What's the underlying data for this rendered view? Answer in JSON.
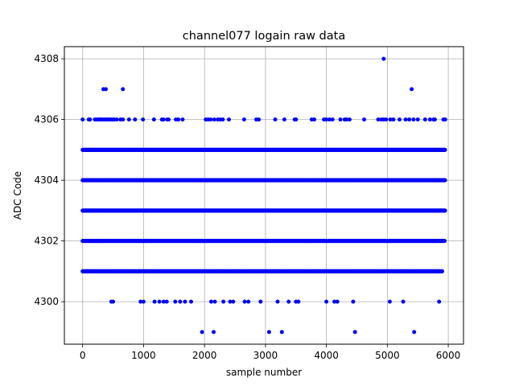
{
  "chart_data": {
    "type": "scatter",
    "title": "channel077 logain raw data",
    "xlabel": "sample number",
    "ylabel": "ADC Code",
    "xlim": [
      -300,
      6250
    ],
    "ylim": [
      4298.6,
      4308.4
    ],
    "xticks": [
      0,
      1000,
      2000,
      3000,
      4000,
      5000,
      6000
    ],
    "yticks": [
      4300,
      4302,
      4304,
      4306,
      4308
    ],
    "grid": true,
    "marker_color": "#0000ff",
    "sample_count": 6000,
    "dense_levels": [
      {
        "value": 4301,
        "x_start": 0,
        "x_end": 5900
      },
      {
        "value": 4302,
        "x_start": 0,
        "x_end": 5940
      },
      {
        "value": 4303,
        "x_start": 0,
        "x_end": 5950
      },
      {
        "value": 4304,
        "x_start": 0,
        "x_end": 5950
      },
      {
        "value": 4305,
        "x_start": 0,
        "x_end": 5950
      }
    ],
    "sparse_points": [
      {
        "value": 4306,
        "x": [
          0,
          100,
          120,
          200,
          230,
          260,
          280,
          300,
          320,
          350,
          380,
          400,
          420,
          450,
          480,
          500,
          520,
          560,
          620,
          660,
          760,
          860,
          990,
          1170,
          1300,
          1330,
          1390,
          1410,
          1530,
          1570,
          1640,
          2020,
          2060,
          2100,
          2160,
          2220,
          2260,
          2300,
          2400,
          2650,
          2850,
          2890,
          3160,
          3310,
          3480,
          3500,
          3760,
          3800,
          3960,
          4000,
          4050,
          4100,
          4230,
          4300,
          4330,
          4380,
          4620,
          4850,
          4900,
          4940,
          4980,
          5050,
          5100,
          5200,
          5300,
          5360,
          5430,
          5500,
          5620,
          5700,
          5760,
          5780,
          5920,
          5950
        ]
      },
      {
        "value": 4300,
        "x": [
          470,
          500,
          950,
          1000,
          1180,
          1260,
          1330,
          1380,
          1520,
          1600,
          1680,
          1780,
          2110,
          2170,
          2310,
          2420,
          2470,
          2660,
          2720,
          2920,
          3200,
          3380,
          3500,
          3540,
          4000,
          4130,
          4180,
          4440,
          5040,
          5260,
          5850
        ]
      },
      {
        "value": 4307,
        "x": [
          340,
          380,
          660,
          5400
        ]
      },
      {
        "value": 4308,
        "x": [
          4940
        ]
      },
      {
        "value": 4299,
        "x": [
          1960,
          2150,
          3060,
          3270,
          4470,
          5440
        ]
      }
    ]
  }
}
